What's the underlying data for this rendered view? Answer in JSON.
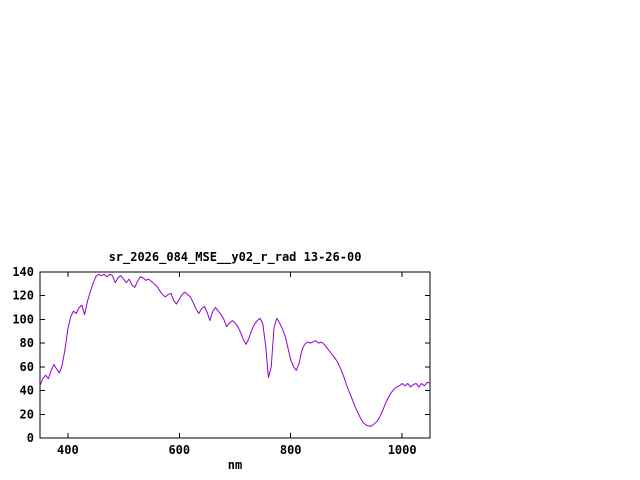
{
  "window": {
    "background": "#ffffff"
  },
  "chart_data": {
    "type": "line",
    "title": "sr_2026_084_MSE__y02_r_rad 13-26-00",
    "xlabel": "nm",
    "ylabel": "",
    "xlim": [
      350,
      1050
    ],
    "ylim": [
      0,
      140
    ],
    "xticks": [
      400,
      600,
      800,
      1000
    ],
    "yticks": [
      0,
      20,
      40,
      60,
      80,
      100,
      120,
      140
    ],
    "grid": false,
    "legend": "none",
    "line_color": "#9400d3",
    "border_color": "#000000",
    "series": [
      {
        "name": "sr_2026_084_MSE__y02_r_rad",
        "x": [
          350,
          355,
          360,
          365,
          370,
          375,
          380,
          385,
          390,
          395,
          400,
          405,
          410,
          415,
          420,
          425,
          430,
          435,
          440,
          445,
          450,
          455,
          460,
          465,
          470,
          475,
          480,
          485,
          490,
          495,
          500,
          505,
          510,
          515,
          520,
          525,
          530,
          535,
          540,
          545,
          550,
          555,
          560,
          565,
          570,
          575,
          580,
          585,
          590,
          595,
          600,
          605,
          610,
          615,
          620,
          625,
          630,
          635,
          640,
          645,
          650,
          655,
          660,
          665,
          670,
          675,
          680,
          685,
          690,
          695,
          700,
          705,
          710,
          715,
          720,
          725,
          730,
          735,
          740,
          745,
          750,
          755,
          760,
          765,
          770,
          775,
          780,
          785,
          790,
          795,
          800,
          805,
          810,
          815,
          820,
          825,
          830,
          835,
          840,
          845,
          850,
          855,
          860,
          865,
          870,
          875,
          880,
          885,
          890,
          895,
          900,
          905,
          910,
          915,
          920,
          925,
          930,
          935,
          940,
          945,
          950,
          955,
          960,
          965,
          970,
          975,
          980,
          985,
          990,
          995,
          1000,
          1005,
          1010,
          1015,
          1020,
          1025,
          1030,
          1035,
          1040,
          1045,
          1050
        ],
        "y": [
          44,
          50,
          53,
          50,
          57,
          62,
          58,
          55,
          62,
          75,
          92,
          102,
          107,
          105,
          110,
          112,
          104,
          115,
          123,
          130,
          136,
          138,
          137,
          138,
          136,
          138,
          137,
          131,
          135,
          137,
          134,
          131,
          134,
          129,
          127,
          132,
          136,
          135,
          133,
          134,
          132,
          130,
          128,
          124,
          121,
          119,
          121,
          122,
          116,
          113,
          117,
          121,
          123,
          121,
          119,
          114,
          109,
          105,
          109,
          111,
          106,
          99,
          107,
          110,
          107,
          104,
          100,
          94,
          97,
          99,
          97,
          94,
          89,
          83,
          79,
          84,
          91,
          96,
          99,
          101,
          96,
          78,
          51,
          60,
          93,
          101,
          97,
          92,
          86,
          76,
          66,
          60,
          57,
          63,
          74,
          79,
          81,
          80,
          81,
          82,
          80,
          81,
          79,
          76,
          73,
          70,
          67,
          63,
          58,
          52,
          45,
          39,
          33,
          27,
          22,
          17,
          13,
          11,
          10,
          10,
          12,
          14,
          18,
          23,
          29,
          34,
          38,
          41,
          43,
          44,
          46,
          44,
          46,
          43,
          45,
          46,
          43,
          46,
          44,
          47,
          46
        ]
      }
    ]
  }
}
